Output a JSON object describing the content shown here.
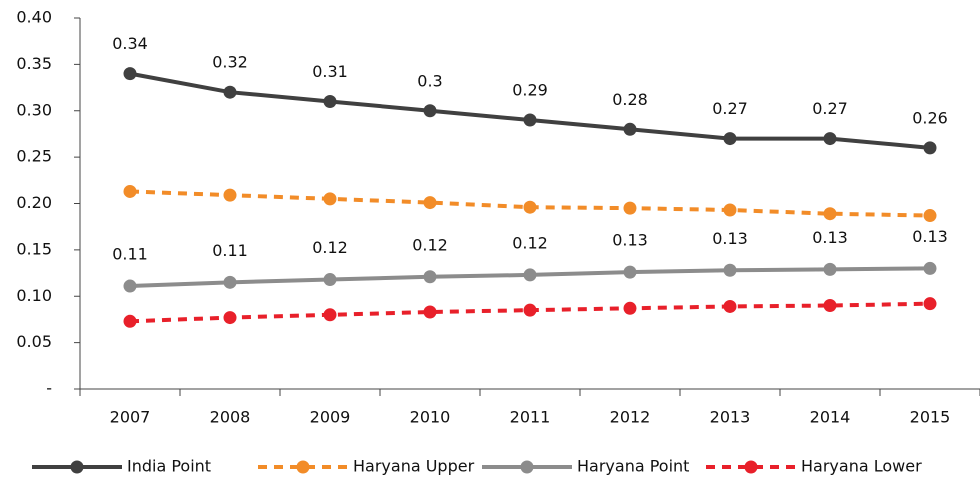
{
  "chart_data": {
    "type": "line",
    "categories": [
      "2007",
      "2008",
      "2009",
      "2010",
      "2011",
      "2012",
      "2013",
      "2014",
      "2015"
    ],
    "series": [
      {
        "name": "India Point",
        "color": "#404040",
        "dashed": false,
        "values": [
          0.34,
          0.32,
          0.31,
          0.3,
          0.29,
          0.28,
          0.27,
          0.27,
          0.26
        ]
      },
      {
        "name": "Haryana Upper",
        "color": "#f28c28",
        "dashed": true,
        "values": [
          0.213,
          0.209,
          0.205,
          0.201,
          0.196,
          0.195,
          0.193,
          0.189,
          0.187
        ]
      },
      {
        "name": "Haryana Point",
        "color": "#8c8c8c",
        "dashed": false,
        "values": [
          0.111,
          0.115,
          0.118,
          0.121,
          0.123,
          0.126,
          0.128,
          0.129,
          0.13
        ],
        "value_labels": [
          "0.11",
          "0.11",
          "0.12",
          "0.12",
          "0.12",
          "0.13",
          "0.13",
          "0.13",
          "0.13"
        ]
      },
      {
        "name": "Haryana Lower",
        "color": "#e8202a",
        "dashed": true,
        "values": [
          0.073,
          0.077,
          0.08,
          0.083,
          0.085,
          0.087,
          0.089,
          0.09,
          0.092
        ]
      }
    ],
    "ylim": [
      0,
      0.4
    ],
    "yticks": [
      {
        "value": 0,
        "label": "-"
      },
      {
        "value": 0.05,
        "label": "0.05"
      },
      {
        "value": 0.1,
        "label": "0.10"
      },
      {
        "value": 0.15,
        "label": "0.15"
      },
      {
        "value": 0.2,
        "label": "0.20"
      },
      {
        "value": 0.25,
        "label": "0.25"
      },
      {
        "value": 0.3,
        "label": "0.30"
      },
      {
        "value": 0.35,
        "label": "0.35"
      },
      {
        "value": 0.4,
        "label": "0.40"
      }
    ],
    "grid": false,
    "legend": "bottom"
  }
}
